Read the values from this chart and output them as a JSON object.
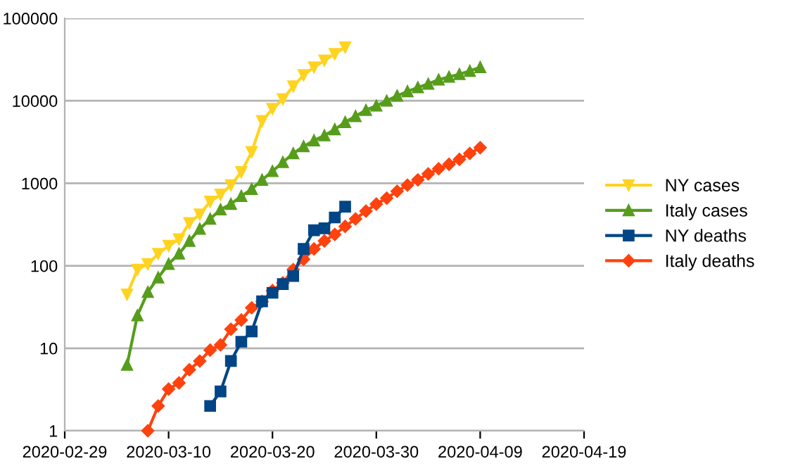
{
  "chart_data": {
    "type": "line",
    "log": "y",
    "grid": "y",
    "legend": "right",
    "line_style": "solid",
    "xlim": [
      "2020-02-29",
      "2020-04-19"
    ],
    "xticks": [
      "2020-02-29",
      "2020-03-10",
      "2020-03-20",
      "2020-03-30",
      "2020-04-09",
      "2020-04-19"
    ],
    "ylim": [
      1,
      100000
    ],
    "yticks": [
      1,
      10,
      100,
      1000,
      10000,
      100000
    ],
    "series": [
      {
        "name": "NY cases",
        "color": "#ffd320",
        "marker": "triangle_down",
        "x": [
          "2020-03-06",
          "2020-03-07",
          "2020-03-08",
          "2020-03-09",
          "2020-03-10",
          "2020-03-11",
          "2020-03-12",
          "2020-03-13",
          "2020-03-14",
          "2020-03-15",
          "2020-03-16",
          "2020-03-17",
          "2020-03-18",
          "2020-03-19",
          "2020-03-20",
          "2020-03-21",
          "2020-03-22",
          "2020-03-23",
          "2020-03-24",
          "2020-03-25",
          "2020-03-26",
          "2020-03-27"
        ],
        "values": [
          45,
          90,
          105,
          140,
          175,
          210,
          330,
          420,
          600,
          730,
          950,
          1370,
          2400,
          5700,
          8000,
          10500,
          15000,
          20500,
          25500,
          30800,
          37000,
          44600
        ]
      },
      {
        "name": "Italy cases",
        "color": "#579d1c",
        "marker": "triangle",
        "x": [
          "2020-03-06",
          "2020-03-07",
          "2020-03-08",
          "2020-03-09",
          "2020-03-10",
          "2020-03-11",
          "2020-03-12",
          "2020-03-13",
          "2020-03-14",
          "2020-03-15",
          "2020-03-16",
          "2020-03-17",
          "2020-03-18",
          "2020-03-19",
          "2020-03-20",
          "2020-03-21",
          "2020-03-22",
          "2020-03-23",
          "2020-03-24",
          "2020-03-25",
          "2020-03-26",
          "2020-03-27",
          "2020-03-28",
          "2020-03-29",
          "2020-03-30",
          "2020-03-31",
          "2020-04-01",
          "2020-04-02",
          "2020-04-03",
          "2020-04-04",
          "2020-04-05",
          "2020-04-06",
          "2020-04-07",
          "2020-04-08",
          "2020-04-09"
        ],
        "values": [
          6.3,
          25,
          48,
          72,
          105,
          140,
          200,
          280,
          370,
          480,
          560,
          700,
          850,
          1100,
          1400,
          1800,
          2300,
          2800,
          3300,
          3800,
          4500,
          5500,
          6500,
          7700,
          8700,
          10000,
          11500,
          13000,
          14500,
          16000,
          18000,
          19500,
          21000,
          23000,
          25500
        ]
      },
      {
        "name": "NY deaths",
        "color": "#004586",
        "marker": "square",
        "x": [
          "2020-03-14",
          "2020-03-15",
          "2020-03-16",
          "2020-03-17",
          "2020-03-18",
          "2020-03-19",
          "2020-03-20",
          "2020-03-21",
          "2020-03-22",
          "2020-03-23",
          "2020-03-24",
          "2020-03-25",
          "2020-03-26",
          "2020-03-27"
        ],
        "values": [
          2,
          3,
          7,
          12,
          16,
          37,
          47,
          60,
          75,
          160,
          270,
          285,
          385,
          520
        ]
      },
      {
        "name": "Italy deaths",
        "color": "#ff420e",
        "marker": "diamond",
        "x": [
          "2020-03-08",
          "2020-03-09",
          "2020-03-10",
          "2020-03-11",
          "2020-03-12",
          "2020-03-13",
          "2020-03-14",
          "2020-03-15",
          "2020-03-16",
          "2020-03-17",
          "2020-03-18",
          "2020-03-19",
          "2020-03-20",
          "2020-03-21",
          "2020-03-22",
          "2020-03-23",
          "2020-03-24",
          "2020-03-25",
          "2020-03-26",
          "2020-03-27",
          "2020-03-28",
          "2020-03-29",
          "2020-03-30",
          "2020-03-31",
          "2020-04-01",
          "2020-04-02",
          "2020-04-03",
          "2020-04-04",
          "2020-04-05",
          "2020-04-06",
          "2020-04-07",
          "2020-04-08",
          "2020-04-09"
        ],
        "values": [
          1,
          2,
          3.2,
          3.8,
          5.5,
          7,
          9.5,
          11,
          17,
          22,
          31,
          37,
          50,
          62,
          90,
          120,
          160,
          200,
          240,
          300,
          370,
          460,
          560,
          660,
          800,
          950,
          1100,
          1300,
          1500,
          1700,
          1950,
          2300,
          2700
        ]
      }
    ]
  }
}
